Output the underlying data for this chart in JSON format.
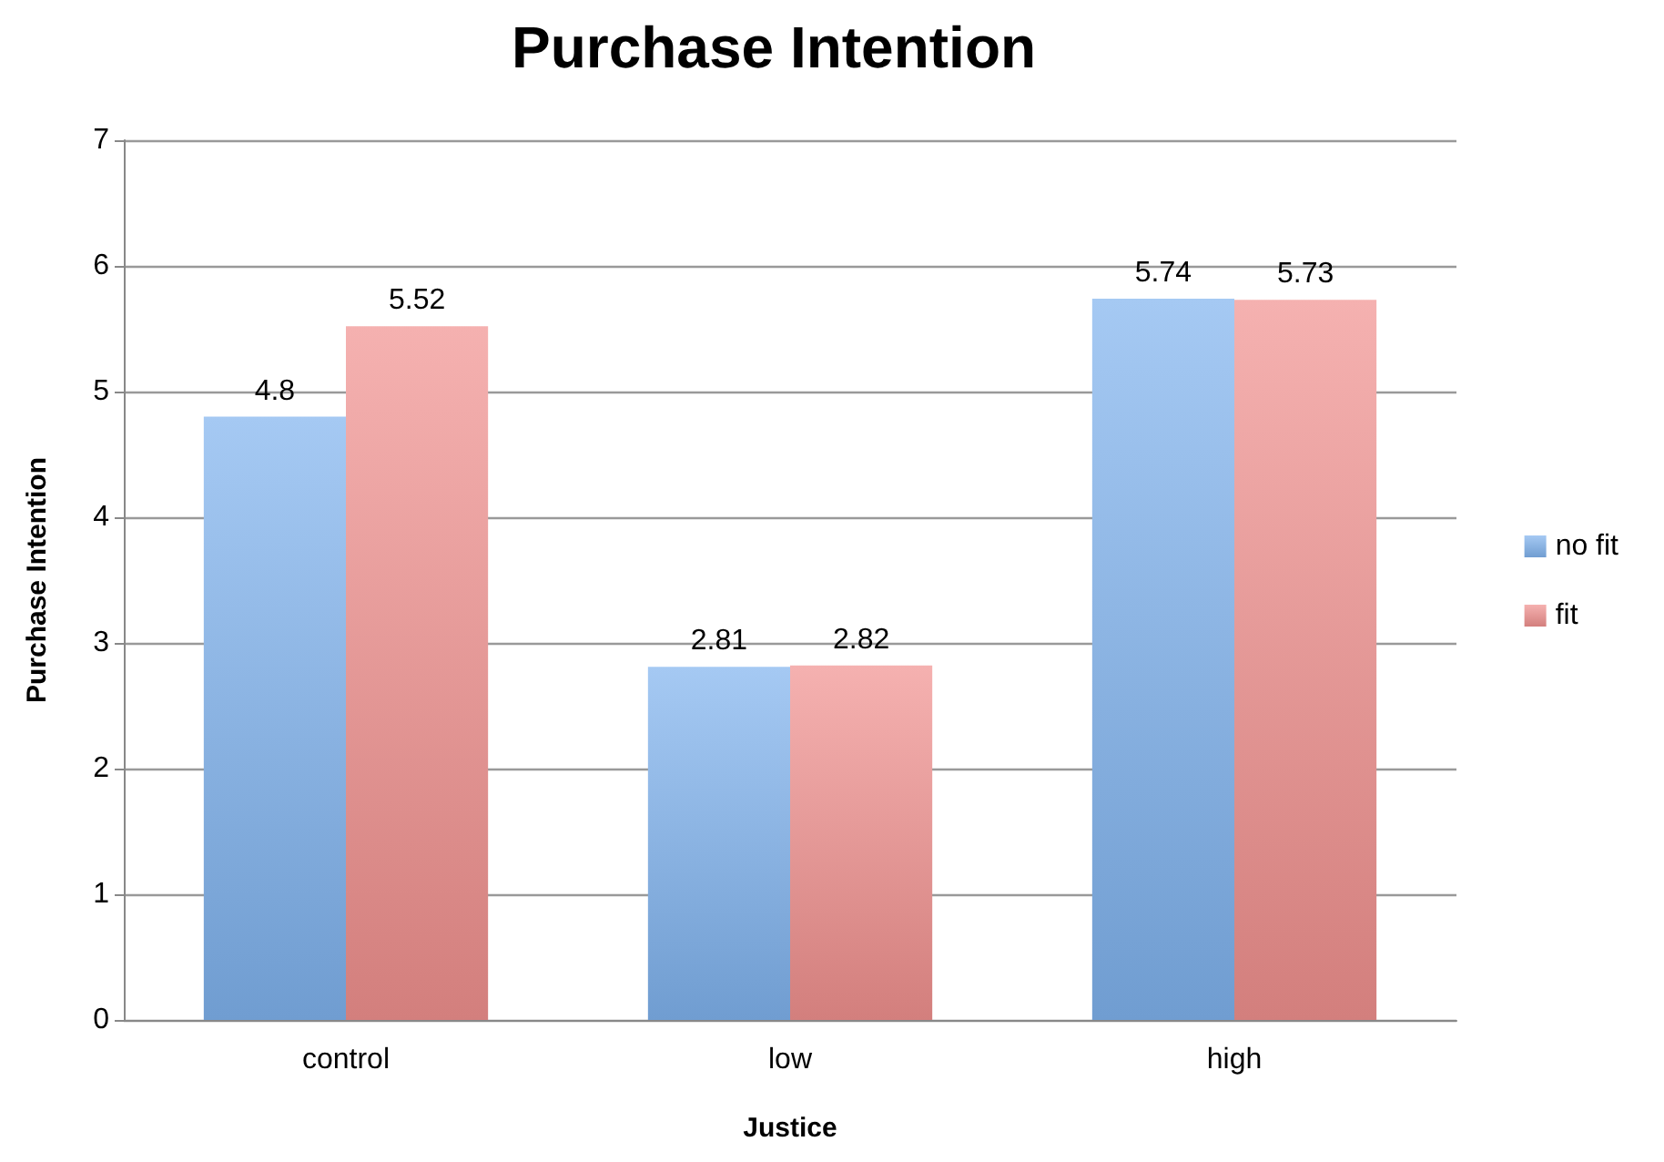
{
  "chart_data": {
    "type": "bar",
    "title": "Purchase Intention",
    "xlabel": "Justice",
    "ylabel": "Purchase Intention",
    "categories": [
      "control",
      "low",
      "high"
    ],
    "series": [
      {
        "name": "no fit",
        "color": "#7fb2ee",
        "values": [
          4.8,
          2.81,
          5.74
        ]
      },
      {
        "name": "fit",
        "color": "#f0908e",
        "values": [
          5.52,
          2.82,
          5.73
        ]
      }
    ],
    "ylim": [
      0,
      7
    ],
    "yticks": [
      0,
      1,
      2,
      3,
      4,
      5,
      6,
      7
    ],
    "grid": "y",
    "legend": "right",
    "data_labels": true
  }
}
